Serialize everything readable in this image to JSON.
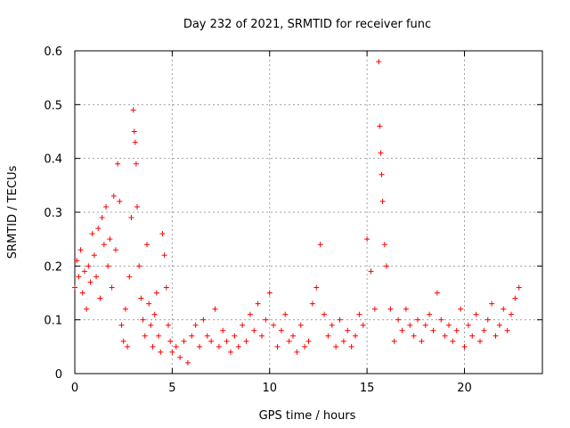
{
  "chart_data": {
    "type": "scatter",
    "title": "Day 232 of 2021, SRMTID for receiver func",
    "xlabel": "GPS time / hours",
    "ylabel": "SRMTID / TECUs",
    "xlim": [
      0,
      24
    ],
    "ylim": [
      0,
      0.6
    ],
    "x_ticks": [
      0,
      5,
      10,
      15,
      20
    ],
    "y_ticks": [
      0,
      0.1,
      0.2,
      0.3,
      0.4,
      0.5,
      0.6
    ],
    "x_tick_labels": [
      "0",
      "5",
      "10",
      "15",
      "20"
    ],
    "y_tick_labels": [
      "0",
      "0.1",
      "0.2",
      "0.3",
      "0.4",
      "0.5",
      "0.6"
    ],
    "grid": true,
    "marker": "+",
    "marker_color": "#ff0000",
    "series": [
      {
        "name": "SRMTID",
        "x": [
          0.0,
          0.1,
          0.2,
          0.3,
          0.4,
          0.5,
          0.6,
          0.7,
          0.8,
          0.9,
          1.0,
          1.1,
          1.2,
          1.3,
          1.4,
          1.5,
          1.6,
          1.7,
          1.8,
          1.9,
          2.0,
          2.1,
          2.2,
          2.3,
          2.4,
          2.5,
          2.6,
          2.7,
          2.8,
          2.9,
          3.0,
          3.05,
          3.1,
          3.15,
          3.2,
          3.3,
          3.4,
          3.5,
          3.6,
          3.7,
          3.8,
          3.9,
          4.0,
          4.1,
          4.2,
          4.3,
          4.4,
          4.5,
          4.6,
          4.7,
          4.8,
          4.9,
          5.0,
          5.2,
          5.4,
          5.6,
          5.8,
          6.0,
          6.2,
          6.4,
          6.6,
          6.8,
          7.0,
          7.2,
          7.4,
          7.6,
          7.8,
          8.0,
          8.2,
          8.4,
          8.6,
          8.8,
          9.0,
          9.2,
          9.4,
          9.6,
          9.8,
          10.0,
          10.2,
          10.4,
          10.6,
          10.8,
          11.0,
          11.2,
          11.4,
          11.6,
          11.8,
          12.0,
          12.2,
          12.4,
          12.6,
          12.8,
          13.0,
          13.2,
          13.4,
          13.6,
          13.8,
          14.0,
          14.2,
          14.4,
          14.6,
          14.8,
          15.0,
          15.2,
          15.4,
          15.6,
          15.65,
          15.7,
          15.75,
          15.8,
          15.9,
          16.0,
          16.2,
          16.4,
          16.6,
          16.8,
          17.0,
          17.2,
          17.4,
          17.6,
          17.8,
          18.0,
          18.2,
          18.4,
          18.6,
          18.8,
          19.0,
          19.2,
          19.4,
          19.6,
          19.8,
          20.0,
          20.2,
          20.4,
          20.6,
          20.8,
          21.0,
          21.2,
          21.4,
          21.6,
          21.8,
          22.0,
          22.2,
          22.4,
          22.6,
          22.8
        ],
        "y": [
          0.16,
          0.21,
          0.18,
          0.23,
          0.15,
          0.19,
          0.12,
          0.2,
          0.17,
          0.26,
          0.22,
          0.18,
          0.27,
          0.14,
          0.29,
          0.24,
          0.31,
          0.2,
          0.25,
          0.16,
          0.33,
          0.23,
          0.39,
          0.32,
          0.09,
          0.06,
          0.12,
          0.05,
          0.18,
          0.29,
          0.49,
          0.45,
          0.43,
          0.39,
          0.31,
          0.2,
          0.14,
          0.1,
          0.07,
          0.24,
          0.13,
          0.09,
          0.05,
          0.11,
          0.15,
          0.07,
          0.04,
          0.26,
          0.22,
          0.16,
          0.09,
          0.06,
          0.04,
          0.05,
          0.03,
          0.06,
          0.02,
          0.07,
          0.09,
          0.05,
          0.1,
          0.07,
          0.06,
          0.12,
          0.05,
          0.08,
          0.06,
          0.04,
          0.07,
          0.05,
          0.09,
          0.06,
          0.11,
          0.08,
          0.13,
          0.07,
          0.1,
          0.15,
          0.09,
          0.05,
          0.08,
          0.11,
          0.06,
          0.07,
          0.04,
          0.09,
          0.05,
          0.06,
          0.13,
          0.16,
          0.24,
          0.11,
          0.07,
          0.09,
          0.05,
          0.1,
          0.06,
          0.08,
          0.05,
          0.07,
          0.11,
          0.09,
          0.25,
          0.19,
          0.12,
          0.58,
          0.46,
          0.41,
          0.37,
          0.32,
          0.24,
          0.2,
          0.12,
          0.06,
          0.1,
          0.08,
          0.12,
          0.09,
          0.07,
          0.1,
          0.06,
          0.09,
          0.11,
          0.08,
          0.15,
          0.1,
          0.07,
          0.09,
          0.06,
          0.08,
          0.12,
          0.05,
          0.09,
          0.07,
          0.11,
          0.06,
          0.08,
          0.1,
          0.13,
          0.07,
          0.09,
          0.12,
          0.08,
          0.11,
          0.14,
          0.16
        ]
      }
    ]
  }
}
